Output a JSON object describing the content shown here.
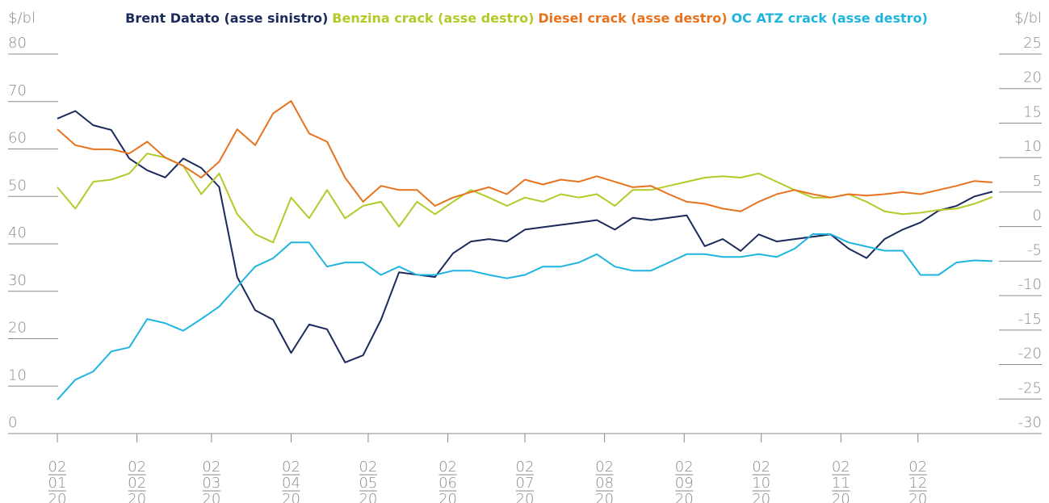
{
  "chart_data": {
    "type": "line",
    "y_label": "$/bl",
    "y2_label": "$/bl",
    "x": [
      "2020-01-02",
      "2020-01-09",
      "2020-01-16",
      "2020-01-23",
      "2020-01-30",
      "2020-02-06",
      "2020-02-13",
      "2020-02-20",
      "2020-02-27",
      "2020-03-05",
      "2020-03-12",
      "2020-03-19",
      "2020-03-26",
      "2020-04-02",
      "2020-04-09",
      "2020-04-16",
      "2020-04-23",
      "2020-04-30",
      "2020-05-07",
      "2020-05-14",
      "2020-05-21",
      "2020-05-28",
      "2020-06-04",
      "2020-06-11",
      "2020-06-18",
      "2020-06-25",
      "2020-07-02",
      "2020-07-09",
      "2020-07-16",
      "2020-07-23",
      "2020-07-30",
      "2020-08-06",
      "2020-08-13",
      "2020-08-20",
      "2020-08-27",
      "2020-09-03",
      "2020-09-10",
      "2020-09-17",
      "2020-09-24",
      "2020-10-01",
      "2020-10-08",
      "2020-10-15",
      "2020-10-22",
      "2020-10-29",
      "2020-11-05",
      "2020-11-12",
      "2020-11-19",
      "2020-11-26",
      "2020-12-03",
      "2020-12-10",
      "2020-12-17",
      "2020-12-24",
      "2020-12-31"
    ],
    "xlim": [
      "2020-01-02",
      "2020-12-31"
    ],
    "xticks": [
      {
        "value": "2020-01-02",
        "label": [
          "02",
          "01",
          "20"
        ]
      },
      {
        "value": "2020-02-02",
        "label": [
          "02",
          "02",
          "20"
        ]
      },
      {
        "value": "2020-03-02",
        "label": [
          "02",
          "03",
          "20"
        ]
      },
      {
        "value": "2020-04-02",
        "label": [
          "02",
          "04",
          "20"
        ]
      },
      {
        "value": "2020-05-02",
        "label": [
          "02",
          "05",
          "20"
        ]
      },
      {
        "value": "2020-06-02",
        "label": [
          "02",
          "06",
          "20"
        ]
      },
      {
        "value": "2020-07-02",
        "label": [
          "02",
          "07",
          "20"
        ]
      },
      {
        "value": "2020-08-02",
        "label": [
          "02",
          "08",
          "20"
        ]
      },
      {
        "value": "2020-09-02",
        "label": [
          "02",
          "09",
          "20"
        ]
      },
      {
        "value": "2020-10-02",
        "label": [
          "02",
          "10",
          "20"
        ]
      },
      {
        "value": "2020-11-02",
        "label": [
          "02",
          "11",
          "20"
        ]
      },
      {
        "value": "2020-12-02",
        "label": [
          "02",
          "12",
          "20"
        ]
      }
    ],
    "ylim": [
      0,
      80
    ],
    "yticks": [
      0,
      10,
      20,
      30,
      40,
      50,
      60,
      70,
      80
    ],
    "y2lim": [
      -30,
      25
    ],
    "y2ticks": [
      -30,
      -25,
      -20,
      -15,
      -10,
      -5,
      0,
      5,
      10,
      15,
      20,
      25
    ],
    "series": [
      {
        "name": "Brent Datato (asse sinistro)",
        "color": "#1b2a5c",
        "values": [
          66.4,
          68,
          65,
          64,
          58,
          55.5,
          54,
          58,
          56,
          52,
          33,
          26,
          24,
          17,
          23,
          22,
          15,
          16.5,
          24,
          34,
          33.5,
          33,
          38,
          40.5,
          41,
          40.5,
          43,
          43.5,
          44,
          44.5,
          45,
          43,
          45.5,
          45,
          45.5,
          46,
          39.5,
          41,
          38.5,
          42,
          40.5,
          41,
          41.5,
          42,
          39,
          37,
          41,
          43,
          44.5,
          47,
          48,
          50,
          51
        ]
      },
      {
        "name": "Benzina crack (asse destro)",
        "color": "#b5c928",
        "axis": "y2",
        "values": [
          5.7,
          2.6,
          6.5,
          6.8,
          7.7,
          10.6,
          10,
          8.8,
          4.7,
          7.7,
          1.8,
          -1.1,
          -2.3,
          4.2,
          1.2,
          5.3,
          1.2,
          3,
          3.6,
          0,
          3.6,
          1.8,
          3.6,
          5.3,
          4.2,
          3,
          4.2,
          3.6,
          4.7,
          4.2,
          4.7,
          3,
          5.3,
          5.3,
          5.9,
          6.5,
          7.1,
          7.3,
          7.1,
          7.7,
          6.5,
          5.3,
          4.2,
          4.2,
          4.7,
          3.6,
          2.2,
          1.8,
          2.0,
          2.4,
          2.6,
          3.3,
          4.3
        ]
      },
      {
        "name": "Diesel crack (asse destro)",
        "color": "#e8731f",
        "axis": "y2",
        "values": [
          14.1,
          11.8,
          11.2,
          11.2,
          10.6,
          12.3,
          10,
          8.8,
          7.1,
          9.4,
          14.1,
          11.8,
          16.4,
          18.2,
          13.5,
          12.3,
          7.1,
          3.6,
          5.9,
          5.3,
          5.3,
          3,
          4.2,
          5,
          5.7,
          4.7,
          6.8,
          6.1,
          6.8,
          6.5,
          7.3,
          6.5,
          5.7,
          5.9,
          4.7,
          3.6,
          3.3,
          2.6,
          2.2,
          3.6,
          4.7,
          5.3,
          4.7,
          4.2,
          4.7,
          4.5,
          4.7,
          5,
          4.7,
          5.3,
          5.9,
          6.6,
          6.4
        ]
      },
      {
        "name": "OC ATZ crack (asse destro)",
        "color": "#1fb5e0",
        "axis": "y2",
        "values": [
          -25.1,
          -22.2,
          -21,
          -18.1,
          -17.5,
          -13.4,
          -14,
          -15.1,
          -13.4,
          -11.6,
          -8.7,
          -5.8,
          -4.6,
          -2.3,
          -2.3,
          -5.8,
          -5.2,
          -5.2,
          -7,
          -5.8,
          -7,
          -7,
          -6.4,
          -6.4,
          -7,
          -7.5,
          -7,
          -5.8,
          -5.8,
          -5.2,
          -4,
          -5.8,
          -6.4,
          -6.4,
          -5.2,
          -4,
          -4,
          -4.4,
          -4.4,
          -4,
          -4.4,
          -3.2,
          -1.1,
          -1.1,
          -2.3,
          -2.9,
          -3.5,
          -3.5,
          -7,
          -7,
          -5.2,
          -4.9,
          -5
        ]
      }
    ]
  }
}
